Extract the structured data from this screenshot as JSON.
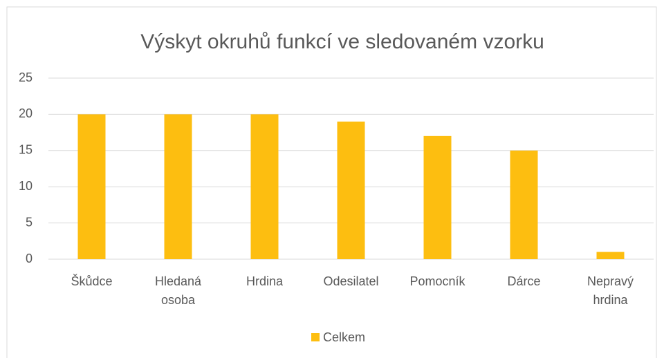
{
  "chart_data": {
    "type": "bar",
    "title": "Výskyt okruhů funkcí ve sledovaném vzorku",
    "categories": [
      "Škůdce",
      "Hledaná osoba",
      "Hrdina",
      "Odesilatel",
      "Pomocník",
      "Dárce",
      "Nepravý hrdina"
    ],
    "series": [
      {
        "name": "Celkem",
        "color": "#fdbe10",
        "values": [
          20,
          20,
          20,
          19,
          17,
          15,
          1
        ]
      }
    ],
    "ylim": [
      0,
      25
    ],
    "yticks": [
      0,
      5,
      10,
      15,
      20,
      25
    ],
    "grid": true,
    "legend": "bottom"
  }
}
